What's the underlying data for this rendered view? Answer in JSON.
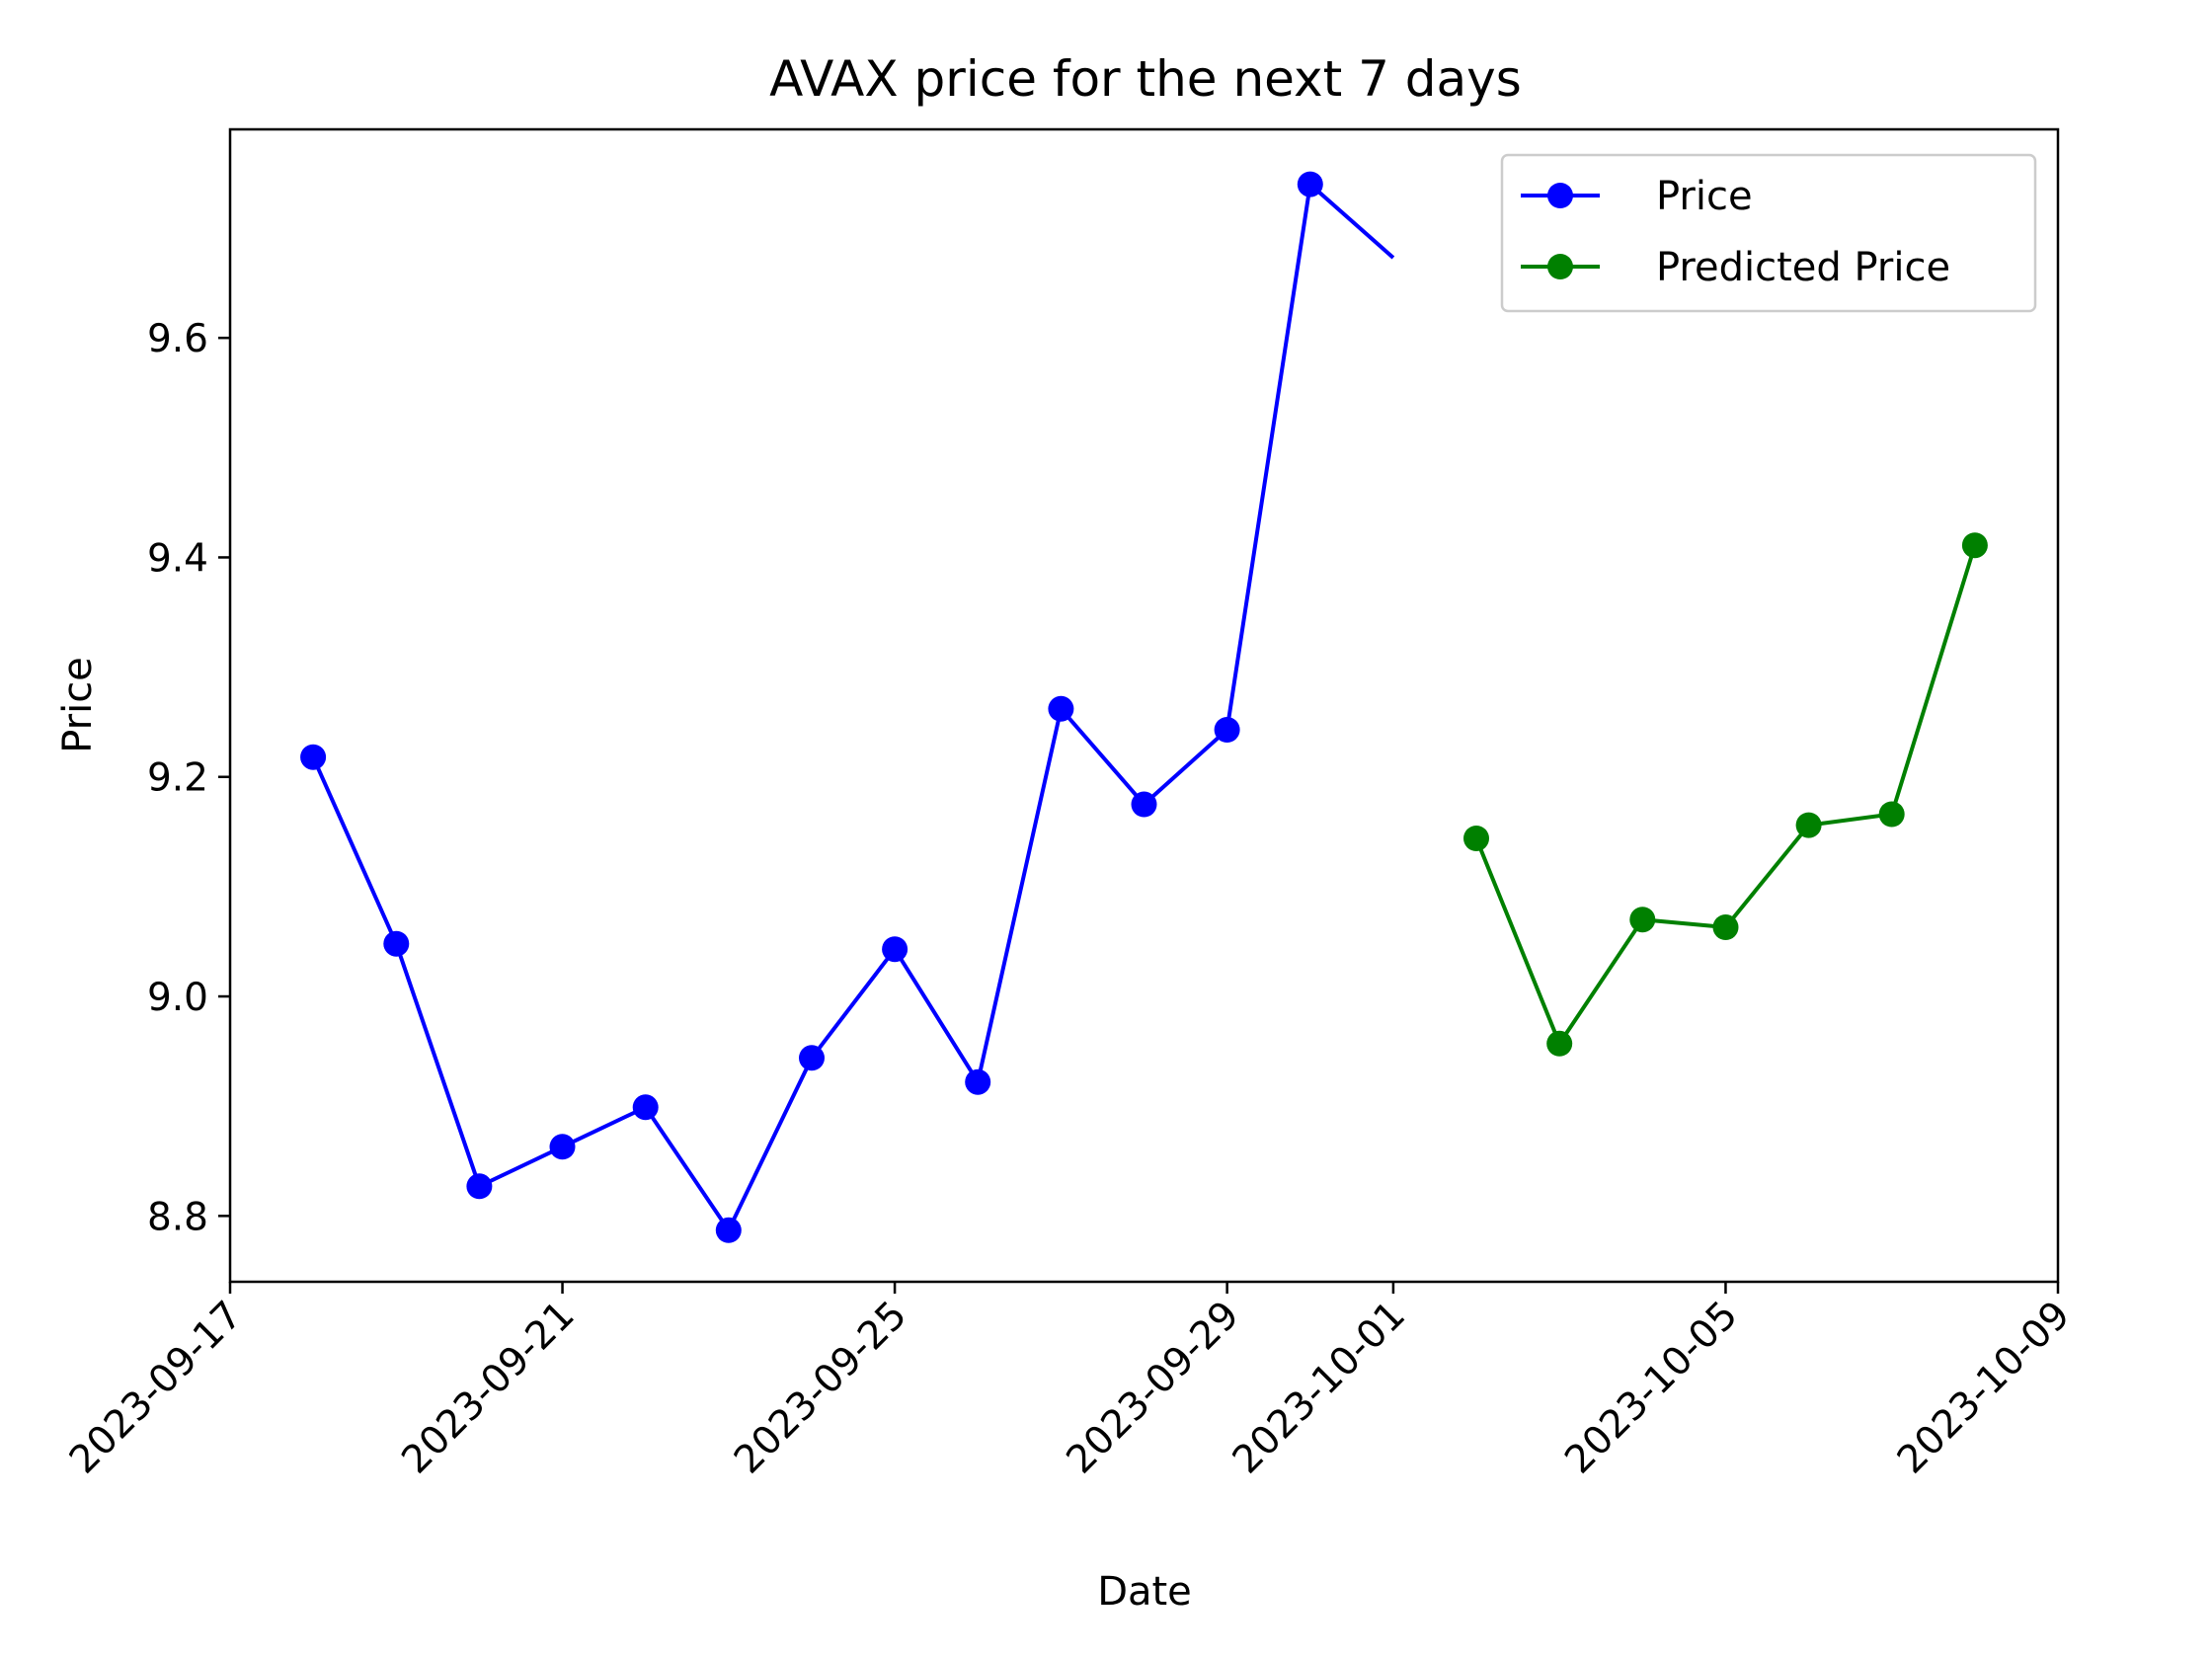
{
  "chart_data": {
    "type": "line",
    "title": "AVAX price for the next 7 days",
    "xlabel": "Date",
    "ylabel": "Price",
    "x_tick_labels": [
      "2023-09-17",
      "2023-09-21",
      "2023-09-25",
      "2023-09-29",
      "2023-10-01",
      "2023-10-05",
      "2023-10-09"
    ],
    "y_tick_labels": [
      "8.8",
      "9.0",
      "9.2",
      "9.4",
      "9.6"
    ],
    "xlim": [
      "2023-09-17",
      "2023-10-09"
    ],
    "ylim": [
      8.74,
      9.79
    ],
    "grid": false,
    "legend_position": "top-right",
    "series": [
      {
        "name": "Price",
        "color": "#0000ff",
        "marker": "circle",
        "points": [
          {
            "x": "2023-09-18",
            "y": 9.218
          },
          {
            "x": "2023-09-19",
            "y": 9.048
          },
          {
            "x": "2023-09-20",
            "y": 8.827
          },
          {
            "x": "2023-09-21",
            "y": 8.863
          },
          {
            "x": "2023-09-22",
            "y": 8.899
          },
          {
            "x": "2023-09-23",
            "y": 8.787
          },
          {
            "x": "2023-09-24",
            "y": 8.944
          },
          {
            "x": "2023-09-25",
            "y": 9.043
          },
          {
            "x": "2023-09-26",
            "y": 8.922
          },
          {
            "x": "2023-09-27",
            "y": 9.262
          },
          {
            "x": "2023-09-28",
            "y": 9.175
          },
          {
            "x": "2023-09-29",
            "y": 9.243
          },
          {
            "x": "2023-09-30",
            "y": 9.74
          }
        ],
        "line_end": {
          "x": "2023-10-01",
          "y": 9.673
        }
      },
      {
        "name": "Predicted Price",
        "color": "#008000",
        "marker": "circle",
        "points": [
          {
            "x": "2023-10-02",
            "y": 9.144
          },
          {
            "x": "2023-10-03",
            "y": 8.957
          },
          {
            "x": "2023-10-04",
            "y": 9.07
          },
          {
            "x": "2023-10-05",
            "y": 9.063
          },
          {
            "x": "2023-10-06",
            "y": 9.156
          },
          {
            "x": "2023-10-07",
            "y": 9.166
          },
          {
            "x": "2023-10-08",
            "y": 9.411
          }
        ]
      }
    ]
  }
}
